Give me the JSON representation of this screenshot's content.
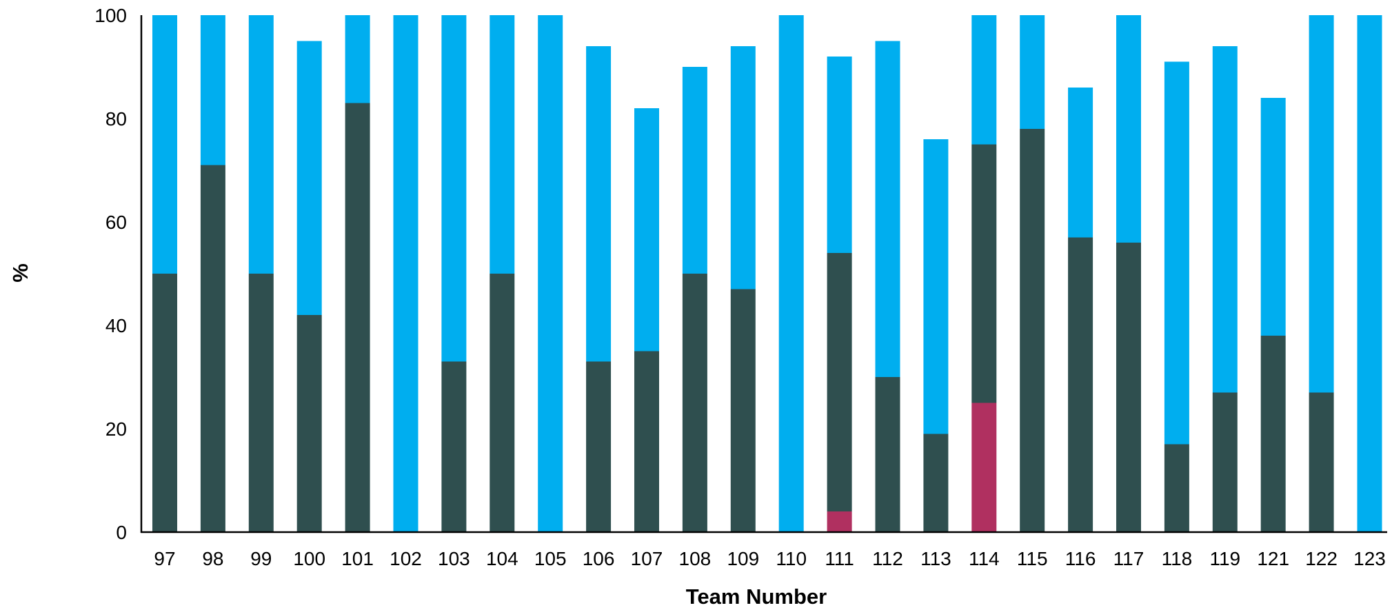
{
  "chart_data": {
    "type": "bar",
    "stacked": true,
    "xlabel": "Team Number",
    "ylabel": "%",
    "ylim": [
      0,
      100
    ],
    "yticks": [
      0,
      20,
      40,
      60,
      80,
      100
    ],
    "grid": false,
    "legend": "none",
    "categories": [
      "97",
      "98",
      "99",
      "100",
      "101",
      "102",
      "103",
      "104",
      "105",
      "106",
      "107",
      "108",
      "109",
      "110",
      "111",
      "112",
      "113",
      "114",
      "115",
      "116",
      "117",
      "118",
      "119",
      "121",
      "122",
      "123"
    ],
    "series": [
      {
        "color": "#b03060",
        "values": [
          0,
          0,
          0,
          0,
          0,
          0,
          0,
          0,
          0,
          0,
          0,
          0,
          0,
          0,
          4,
          0,
          0,
          25,
          0,
          0,
          0,
          0,
          0,
          0,
          0,
          0
        ]
      },
      {
        "color": "#2f4f4f",
        "values": [
          50,
          71,
          50,
          42,
          83,
          0,
          33,
          50,
          0,
          33,
          35,
          50,
          47,
          0,
          50,
          30,
          19,
          50,
          78,
          57,
          56,
          17,
          27,
          38,
          27,
          0
        ]
      },
      {
        "color": "#00aeef",
        "values": [
          50,
          29,
          50,
          53,
          17,
          100,
          67,
          50,
          100,
          61,
          47,
          40,
          47,
          100,
          38,
          65,
          57,
          25,
          22,
          29,
          44,
          74,
          67,
          46,
          73,
          100
        ]
      }
    ]
  }
}
